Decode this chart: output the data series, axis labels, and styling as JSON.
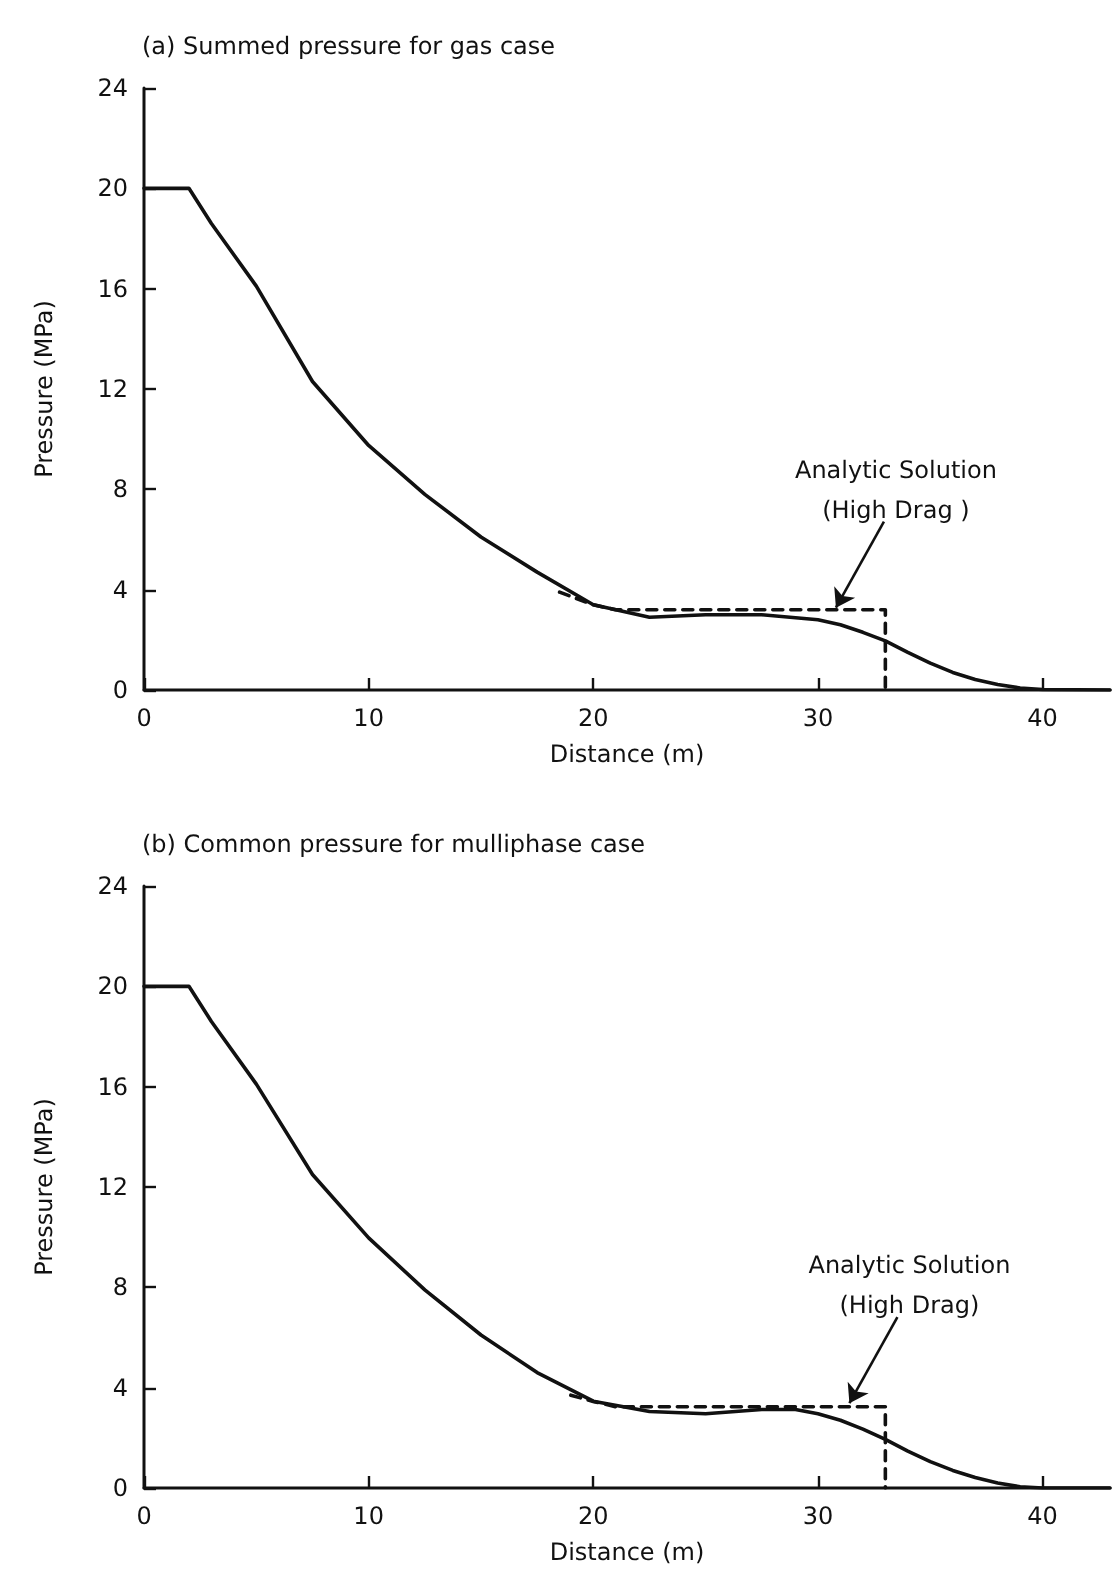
{
  "chart_data": [
    {
      "type": "line",
      "title": "(a) Summed pressure for gas case",
      "xlabel": "Distance (m)",
      "ylabel": "Pressure (MPa)",
      "xlim": [
        0,
        43
      ],
      "ylim": [
        0,
        24
      ],
      "xticks": [
        0,
        10,
        20,
        30,
        40
      ],
      "yticks": [
        0,
        4,
        8,
        12,
        16,
        20,
        24
      ],
      "marker": "none",
      "series": [
        {
          "color": "#111111",
          "line_style": "solid",
          "x": [
            0,
            2,
            3,
            5,
            7.5,
            10,
            12.5,
            15,
            17.5,
            20,
            22.5,
            25,
            27.5,
            30,
            31,
            32,
            33,
            34,
            35,
            36,
            37,
            38,
            39,
            40,
            43
          ],
          "values": [
            20,
            20,
            18.6,
            16.1,
            12.3,
            9.75,
            7.8,
            6.1,
            4.7,
            3.4,
            2.9,
            3.0,
            3.0,
            2.8,
            2.6,
            2.3,
            1.96,
            1.5,
            1.07,
            0.7,
            0.42,
            0.22,
            0.08,
            0.02,
            0
          ]
        },
        {
          "color": "#111111",
          "line_style": "dashed",
          "x": [
            18.5,
            20,
            21,
            33,
            33
          ],
          "values": [
            3.9,
            3.4,
            3.2,
            3.2,
            0
          ]
        }
      ],
      "annotations": [
        {
          "text": "Analytic Solution\n(High Drag )",
          "x": 30.8,
          "y": 3.2
        }
      ]
    },
    {
      "type": "line",
      "title": "(b) Common pressure for mulliphase case",
      "xlabel": "Distance (m)",
      "ylabel": "Pressure (MPa)",
      "xlim": [
        0,
        43
      ],
      "ylim": [
        0,
        24
      ],
      "xticks": [
        0,
        10,
        20,
        30,
        40
      ],
      "yticks": [
        0,
        4,
        8,
        12,
        16,
        20,
        24
      ],
      "marker": "none",
      "series": [
        {
          "color": "#111111",
          "line_style": "solid",
          "x": [
            0,
            2,
            3,
            5,
            7.5,
            10,
            12.5,
            15,
            17.5,
            20,
            22.5,
            25,
            27.5,
            29,
            30,
            31,
            32,
            33,
            34,
            35,
            36,
            37,
            38,
            39,
            40,
            43
          ],
          "values": [
            20,
            20,
            18.6,
            16.1,
            12.5,
            9.97,
            7.9,
            6.1,
            4.6,
            3.46,
            3.05,
            2.96,
            3.13,
            3.13,
            2.96,
            2.7,
            2.35,
            1.94,
            1.47,
            1.05,
            0.7,
            0.42,
            0.2,
            0.05,
            0,
            0
          ]
        },
        {
          "color": "#111111",
          "line_style": "dashed",
          "x": [
            19,
            20,
            21,
            33,
            33
          ],
          "values": [
            3.7,
            3.45,
            3.24,
            3.24,
            0
          ]
        }
      ],
      "annotations": [
        {
          "text": "Analytic Solution\n(High Drag)",
          "x": 31.4,
          "y": 3.3
        }
      ]
    }
  ]
}
